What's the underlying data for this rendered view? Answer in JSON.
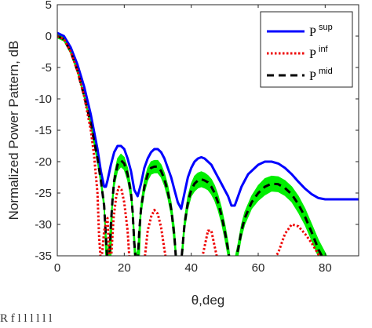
{
  "chart_data": {
    "type": "line",
    "title": "",
    "xlabel": "θ,deg",
    "ylabel": "Normalized Power Pattern, dB",
    "xlim": [
      0,
      90
    ],
    "ylim": [
      -35,
      5
    ],
    "xticks": [
      0,
      20,
      40,
      60,
      80
    ],
    "yticks": [
      5,
      0,
      -5,
      -10,
      -15,
      -20,
      -25,
      -30,
      -35
    ],
    "grid": false,
    "legend_position": "top-right",
    "series": [
      {
        "name": "P",
        "superscript": "sup",
        "color": "#0000ff",
        "style": "solid",
        "x": [
          0,
          2,
          4,
          6,
          8,
          10,
          12,
          13,
          14,
          14.5,
          15,
          16,
          17,
          18,
          19,
          20,
          21,
          22,
          23,
          24,
          25,
          26,
          27,
          28,
          29,
          30,
          31,
          32,
          33,
          34,
          35,
          36,
          37,
          38,
          39,
          40,
          41,
          42,
          43,
          44,
          45,
          46,
          47,
          48,
          49,
          50,
          51,
          52,
          53,
          54,
          55,
          56,
          57,
          58,
          60,
          62,
          64,
          66,
          68,
          70,
          72,
          74,
          76,
          78,
          80,
          82,
          84,
          86,
          88,
          90
        ],
        "y": [
          0.5,
          0,
          -1.8,
          -4.5,
          -8,
          -12.5,
          -18,
          -21.5,
          -24,
          -24,
          -23,
          -20.5,
          -18.5,
          -17.5,
          -17.5,
          -18,
          -19.5,
          -21.5,
          -24.5,
          -25.5,
          -23.5,
          -21,
          -19.5,
          -18.5,
          -18,
          -18,
          -18.5,
          -19.5,
          -21,
          -22.5,
          -24.5,
          -26.5,
          -27.5,
          -25,
          -22.5,
          -21,
          -20,
          -19.5,
          -19.3,
          -19.5,
          -20,
          -20.5,
          -21.5,
          -22.5,
          -23.5,
          -24.5,
          -25.5,
          -27,
          -27,
          -25.5,
          -24,
          -23,
          -22,
          -21.5,
          -20.5,
          -20,
          -20,
          -20.3,
          -21,
          -22,
          -23.2,
          -24.3,
          -25.2,
          -25.8,
          -26,
          -26,
          -26,
          -26,
          -26,
          -26
        ]
      },
      {
        "name": "P",
        "superscript": "inf",
        "color": "#ee0000",
        "style": "dotted",
        "x": [
          0,
          2,
          4,
          6,
          8,
          10,
          11,
          12,
          12.5,
          13,
          13.5,
          14,
          15,
          15.6,
          16,
          16.8,
          17.6,
          18.4,
          19.2,
          20,
          21,
          21.6,
          22,
          25,
          26,
          27,
          28,
          29,
          30,
          31,
          32,
          32.6,
          33,
          40,
          42,
          43,
          44,
          45,
          46,
          47,
          48,
          49,
          50,
          58,
          60,
          62,
          64,
          66,
          68,
          70,
          72,
          74,
          76,
          78,
          80,
          81,
          82
        ],
        "y": [
          0,
          -0.5,
          -2.5,
          -5.5,
          -9.5,
          -15,
          -19,
          -25,
          -32,
          -36,
          -34,
          -31,
          -29,
          -36,
          -36,
          -29,
          -25.5,
          -24,
          -24.5,
          -26.5,
          -31,
          -36,
          -36,
          -36,
          -36,
          -31,
          -28.8,
          -27.7,
          -28.3,
          -30.5,
          -34,
          -36,
          -36,
          -36,
          -36,
          -36,
          -33.5,
          -31,
          -31,
          -33.5,
          -36,
          -36,
          -36,
          -36,
          -36,
          -36,
          -36,
          -34.5,
          -31.5,
          -30,
          -30.3,
          -31.5,
          -33,
          -34.8,
          -36,
          -36,
          -36
        ]
      },
      {
        "name": "P",
        "superscript": "mid",
        "color": "#000000",
        "style": "dashed",
        "x": [
          0,
          2,
          4,
          6,
          8,
          10,
          12,
          13,
          14,
          14.5,
          15,
          15.5,
          16,
          16.5,
          17,
          18,
          19,
          20,
          21,
          22,
          22.5,
          23,
          23.5,
          24,
          24.5,
          25,
          26,
          27,
          28,
          29,
          30,
          31,
          32,
          33,
          34,
          35,
          35.5,
          36,
          36.5,
          37,
          37.5,
          38,
          39,
          40,
          41,
          42,
          43,
          44,
          45,
          46,
          47,
          48,
          49,
          50,
          51,
          51.5,
          52,
          52.5,
          53,
          54,
          55,
          56,
          58,
          60,
          62,
          64,
          66,
          68,
          70,
          72,
          74,
          76,
          78,
          80,
          81,
          82,
          83,
          84
        ],
        "y": [
          0,
          -0.5,
          -2.5,
          -5.5,
          -9.5,
          -14,
          -19.5,
          -23,
          -27,
          -32,
          -36,
          -36,
          -30,
          -26,
          -23,
          -20.5,
          -19.8,
          -20.3,
          -22,
          -25,
          -28,
          -33,
          -36,
          -36,
          -31,
          -27.5,
          -24,
          -22,
          -21,
          -20.8,
          -20.8,
          -21.5,
          -22.8,
          -24.8,
          -27.5,
          -32,
          -36,
          -36,
          -36,
          -36,
          -33,
          -30,
          -26.5,
          -24.5,
          -23.5,
          -23,
          -22.8,
          -23,
          -23.3,
          -24,
          -25,
          -26.5,
          -28.5,
          -31,
          -34,
          -36,
          -36,
          -36,
          -36,
          -34,
          -31,
          -29,
          -26.5,
          -25,
          -24,
          -23.5,
          -23.6,
          -24.2,
          -25.2,
          -26.8,
          -28.8,
          -31.3,
          -34,
          -36,
          -36,
          -36,
          -36,
          -36
        ]
      }
    ],
    "band": {
      "color": "#00ee00",
      "x": [
        0,
        2,
        4,
        6,
        8,
        10,
        12,
        13,
        14,
        14.5,
        15,
        15.5,
        16,
        16.5,
        17,
        18,
        19,
        20,
        21,
        22,
        22.5,
        23,
        23.5,
        24,
        24.5,
        25,
        26,
        27,
        28,
        29,
        30,
        31,
        32,
        33,
        34,
        35,
        35.5,
        36,
        36.5,
        37,
        37.5,
        38,
        39,
        40,
        41,
        42,
        43,
        44,
        45,
        46,
        47,
        48,
        49,
        50,
        51,
        51.5,
        52,
        52.5,
        53,
        54,
        55,
        56,
        58,
        60,
        62,
        64,
        66,
        68,
        70,
        72,
        74,
        76,
        78,
        80,
        81,
        82,
        83,
        84,
        85,
        86
      ],
      "upper": [
        0.3,
        -0.2,
        -2.2,
        -5.2,
        -9.2,
        -13.6,
        -18.8,
        -22.3,
        -26.3,
        -31,
        -34.5,
        -33,
        -29,
        -25,
        -22,
        -19.5,
        -18.8,
        -19.3,
        -21,
        -24,
        -27,
        -31,
        -35,
        -34,
        -30,
        -26.5,
        -23,
        -21,
        -20,
        -19.8,
        -19.8,
        -20.5,
        -21.8,
        -23.8,
        -26.5,
        -30.5,
        -34.5,
        -36,
        -36,
        -35,
        -32,
        -29,
        -25.5,
        -23.5,
        -22.3,
        -21.8,
        -21.6,
        -21.8,
        -22.2,
        -22.8,
        -23.8,
        -25.3,
        -27.3,
        -29.8,
        -32.8,
        -34.8,
        -36,
        -36,
        -35.5,
        -33,
        -30,
        -28,
        -25.5,
        -23.8,
        -22.7,
        -22.3,
        -22.4,
        -23,
        -24,
        -25.5,
        -27.5,
        -30,
        -32.5,
        -34.5,
        -35.5,
        -36,
        -36,
        -36,
        -36,
        -36
      ],
      "lower": [
        -0.3,
        -0.8,
        -2.8,
        -5.8,
        -9.8,
        -14.4,
        -20.2,
        -23.7,
        -27.7,
        -36,
        -36,
        -36,
        -36,
        -27,
        -24,
        -21.5,
        -20.8,
        -21.3,
        -23,
        -26,
        -29,
        -35,
        -36,
        -36,
        -36,
        -28.5,
        -25,
        -23,
        -22,
        -21.8,
        -21.8,
        -22.5,
        -23.8,
        -25.8,
        -28.5,
        -33.5,
        -36,
        -36,
        -36,
        -36,
        -34.5,
        -31,
        -27.5,
        -25.5,
        -24.7,
        -24.2,
        -24,
        -24.2,
        -24.5,
        -25.2,
        -26.2,
        -27.7,
        -29.7,
        -32.2,
        -35.2,
        -36,
        -36,
        -36,
        -36,
        -35,
        -32,
        -30,
        -27.5,
        -26.2,
        -25.3,
        -24.7,
        -24.8,
        -25.4,
        -26.4,
        -28.1,
        -30.1,
        -32.6,
        -35.2,
        -36,
        -36,
        -36,
        -36,
        -36,
        -36,
        -36
      ]
    }
  },
  "footer": {
    "text": "R  f          l                                                      l  l  l     l     l   "
  }
}
